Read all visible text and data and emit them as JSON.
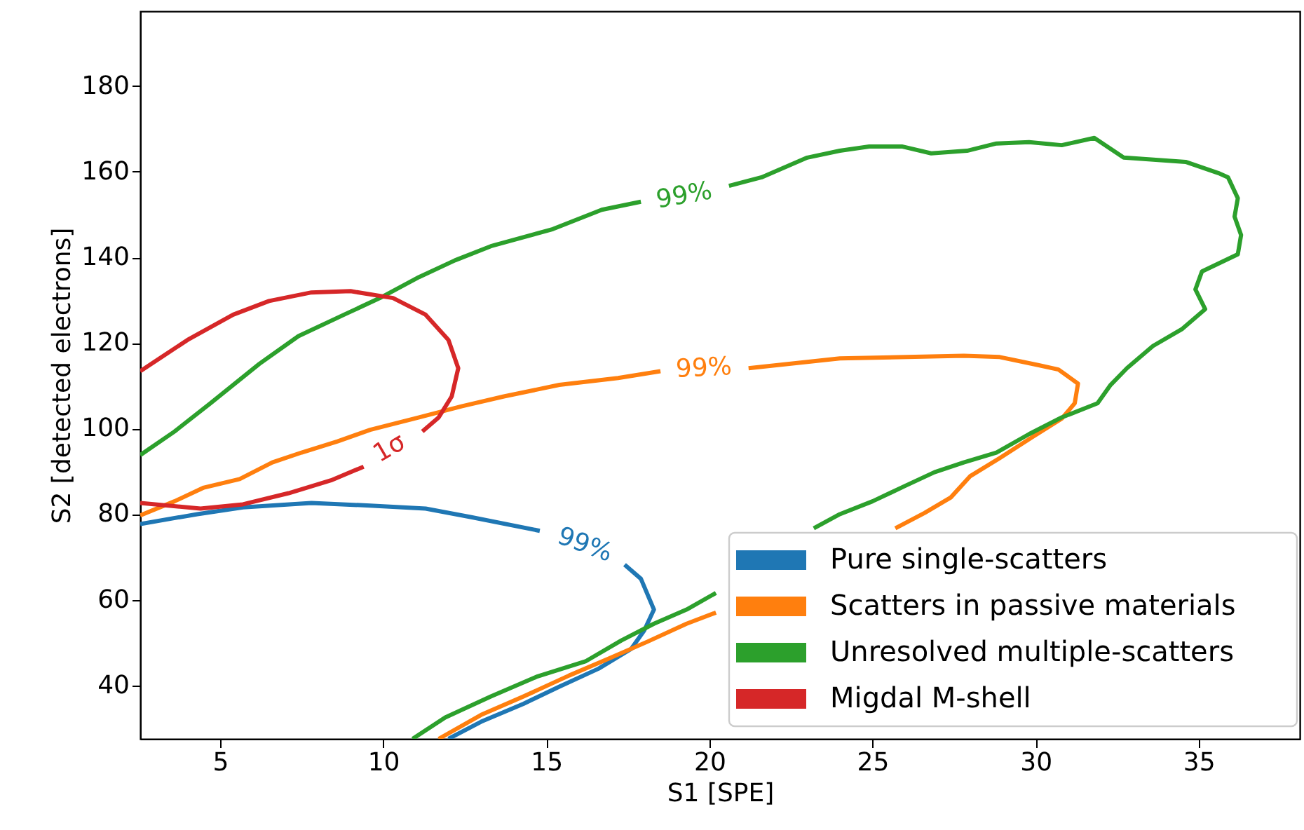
{
  "chart_data": {
    "type": "line",
    "xlabel": "S1 [SPE]",
    "ylabel": "S2 [detected electrons]",
    "xlim": [
      2.55,
      38.1
    ],
    "ylim": [
      27.5,
      197.5
    ],
    "xticks": [
      5,
      10,
      15,
      20,
      25,
      30,
      35
    ],
    "yticks": [
      40,
      60,
      80,
      100,
      120,
      140,
      160,
      180
    ],
    "grid": false,
    "legend": "bottom right",
    "line_style": "solid",
    "marker": "none",
    "series": [
      {
        "name": "Pure single-scatters",
        "color": "#1f77b4",
        "x": [
          2.55,
          4.3,
          5.7,
          7.8,
          9.6,
          11.3,
          12.7,
          14.8,
          null,
          17.4,
          17.9,
          18.3,
          18.0,
          17.6,
          16.6,
          15.4,
          14.3,
          13.0,
          12.0
        ],
        "values": [
          77.7,
          80.0,
          81.6,
          82.6,
          82.0,
          81.3,
          79.3,
          76.1,
          null,
          68.2,
          64.9,
          57.7,
          52.8,
          48.5,
          43.9,
          39.7,
          35.7,
          31.5,
          27.5
        ]
      },
      {
        "name": "Scatters in passive materials",
        "color": "#ff7f0e",
        "x": [
          2.55,
          3.6,
          4.5,
          5.6,
          6.6,
          7.5,
          8.6,
          9.6,
          11.1,
          12.4,
          13.7,
          15.4,
          17.2,
          18.5,
          null,
          21.2,
          24.0,
          27.8,
          28.9,
          30.1,
          30.7,
          31.3,
          31.2,
          30.8,
          29.9,
          28.9,
          28.0,
          27.4,
          26.6,
          25.7,
          null,
          20.2,
          19.3,
          18.1,
          16.9,
          15.7,
          14.3,
          13.0,
          11.7
        ],
        "values": [
          79.7,
          83.0,
          86.2,
          88.2,
          92.1,
          94.4,
          97.0,
          99.7,
          102.6,
          105.2,
          107.5,
          110.2,
          111.8,
          113.4,
          null,
          114.1,
          116.4,
          117.0,
          116.7,
          114.8,
          113.8,
          110.5,
          105.9,
          102.3,
          98.0,
          93.1,
          88.9,
          83.9,
          80.3,
          76.7,
          null,
          57.0,
          54.4,
          50.2,
          46.2,
          42.3,
          37.4,
          33.1,
          27.5
        ]
      },
      {
        "name": "Unresolved multiple-scatters",
        "color": "#2ca02c",
        "x": [
          2.55,
          3.6,
          4.7,
          6.2,
          7.4,
          8.8,
          9.9,
          11.1,
          12.2,
          13.3,
          15.2,
          16.7,
          17.9,
          null,
          20.6,
          21.6,
          23.0,
          24.0,
          24.9,
          25.9,
          26.8,
          27.9,
          28.8,
          29.8,
          30.8,
          31.8,
          32.7,
          34.6,
          35.6,
          35.9,
          36.2,
          36.1,
          36.3,
          36.2,
          35.1,
          34.9,
          35.2,
          34.5,
          33.6,
          32.8,
          32.3,
          31.9,
          30.8,
          29.8,
          28.8,
          27.8,
          26.9,
          26.0,
          25.0,
          24.0,
          23.2,
          null,
          20.2,
          19.3,
          18.3,
          17.3,
          16.2,
          14.7,
          13.3,
          11.9,
          10.9
        ],
        "values": [
          93.8,
          99.3,
          105.9,
          115.1,
          121.6,
          126.6,
          130.5,
          135.4,
          139.3,
          142.6,
          146.6,
          151.1,
          153.0,
          null,
          156.7,
          158.7,
          163.3,
          164.9,
          165.9,
          165.9,
          164.3,
          164.9,
          166.6,
          166.9,
          166.2,
          167.9,
          163.3,
          162.3,
          159.7,
          158.7,
          153.8,
          149.5,
          145.2,
          140.7,
          136.7,
          132.5,
          127.9,
          123.3,
          119.3,
          114.1,
          110.2,
          105.9,
          102.6,
          98.7,
          94.4,
          92.1,
          89.8,
          86.6,
          83.0,
          80.0,
          76.7,
          null,
          61.6,
          57.7,
          54.4,
          50.5,
          45.6,
          42.0,
          37.4,
          32.5,
          27.5
        ]
      },
      {
        "name": "Migdal M-shell",
        "color": "#d62728",
        "x": [
          2.55,
          4.0,
          5.4,
          6.5,
          7.8,
          9.0,
          10.3,
          11.3,
          12.0,
          12.3,
          12.1,
          11.7,
          11.2,
          null,
          9.4,
          8.4,
          7.1,
          5.7,
          4.4,
          2.55
        ],
        "values": [
          113.4,
          120.7,
          126.6,
          129.8,
          131.8,
          132.1,
          130.5,
          126.6,
          120.7,
          114.1,
          107.5,
          102.6,
          99.3,
          null,
          91.1,
          87.9,
          84.9,
          82.3,
          81.3,
          82.6
        ]
      }
    ],
    "annotations": [
      "99%",
      "99%",
      "99%",
      "1σ"
    ]
  }
}
